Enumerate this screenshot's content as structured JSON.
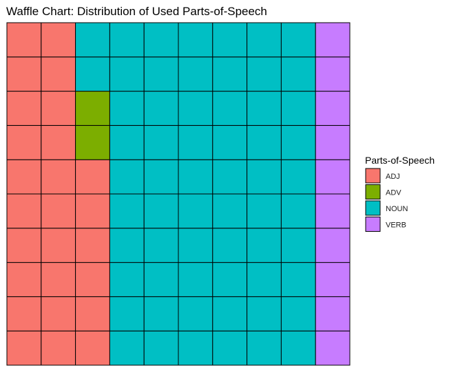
{
  "chart_data": {
    "type": "waffle",
    "title": "Waffle Chart: Distribution of Used Parts-of-Speech",
    "grid": {
      "rows": 10,
      "cols": 10
    },
    "categories": [
      "ADJ",
      "ADV",
      "NOUN",
      "VERB"
    ],
    "values": [
      26,
      2,
      62,
      10
    ],
    "colors": {
      "ADJ": "#F8766D",
      "ADV": "#7CAE00",
      "NOUN": "#00BFC4",
      "VERB": "#C77CFF"
    },
    "cell_fill_order": "column-major, filled from the bottom row upward, left to right",
    "legend": {
      "title": "Parts-of-Speech",
      "position": "right",
      "items": [
        "ADJ",
        "ADV",
        "NOUN",
        "VERB"
      ]
    }
  }
}
